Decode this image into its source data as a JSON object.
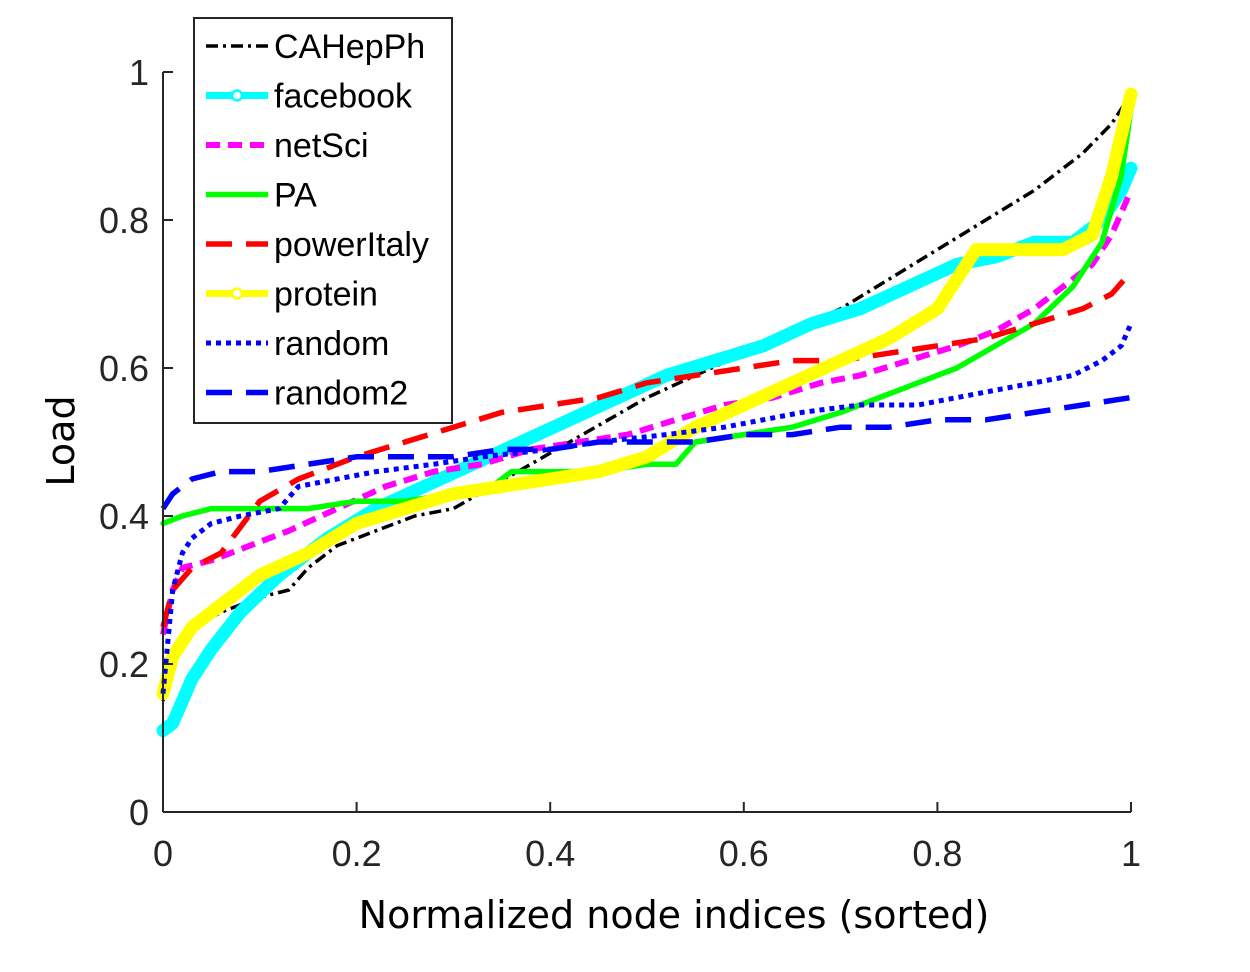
{
  "chart_data": {
    "type": "line",
    "xlabel": "Normalized node indices (sorted)",
    "ylabel": "Load",
    "xlim": [
      0,
      1
    ],
    "ylim": [
      0,
      1
    ],
    "xticks": [
      "0",
      "0.2",
      "0.4",
      "0.6",
      "0.8",
      "1"
    ],
    "yticks": [
      "0",
      "0.2",
      "0.4",
      "0.6",
      "0.8",
      "1"
    ],
    "grid": false,
    "legend_position": "top-left",
    "series": [
      {
        "name": "CAHepPh",
        "color": "#000000",
        "style": "dashdot",
        "points": [
          [
            0,
            0.15
          ],
          [
            0.01,
            0.22
          ],
          [
            0.03,
            0.25
          ],
          [
            0.06,
            0.27
          ],
          [
            0.1,
            0.29
          ],
          [
            0.13,
            0.3
          ],
          [
            0.15,
            0.33
          ],
          [
            0.18,
            0.36
          ],
          [
            0.22,
            0.38
          ],
          [
            0.26,
            0.4
          ],
          [
            0.3,
            0.41
          ],
          [
            0.34,
            0.44
          ],
          [
            0.38,
            0.47
          ],
          [
            0.42,
            0.5
          ],
          [
            0.46,
            0.53
          ],
          [
            0.5,
            0.56
          ],
          [
            0.55,
            0.59
          ],
          [
            0.6,
            0.62
          ],
          [
            0.65,
            0.65
          ],
          [
            0.7,
            0.68
          ],
          [
            0.75,
            0.72
          ],
          [
            0.8,
            0.76
          ],
          [
            0.85,
            0.8
          ],
          [
            0.9,
            0.84
          ],
          [
            0.95,
            0.89
          ],
          [
            0.98,
            0.93
          ],
          [
            1,
            0.97
          ]
        ]
      },
      {
        "name": "facebook",
        "color": "#00ffff",
        "style": "solid-marker",
        "points": [
          [
            0,
            0.11
          ],
          [
            0.01,
            0.12
          ],
          [
            0.02,
            0.15
          ],
          [
            0.03,
            0.18
          ],
          [
            0.05,
            0.22
          ],
          [
            0.08,
            0.27
          ],
          [
            0.12,
            0.32
          ],
          [
            0.17,
            0.37
          ],
          [
            0.22,
            0.41
          ],
          [
            0.27,
            0.44
          ],
          [
            0.32,
            0.47
          ],
          [
            0.37,
            0.5
          ],
          [
            0.42,
            0.53
          ],
          [
            0.47,
            0.56
          ],
          [
            0.52,
            0.59
          ],
          [
            0.57,
            0.61
          ],
          [
            0.62,
            0.63
          ],
          [
            0.67,
            0.66
          ],
          [
            0.72,
            0.68
          ],
          [
            0.77,
            0.71
          ],
          [
            0.82,
            0.74
          ],
          [
            0.86,
            0.75
          ],
          [
            0.9,
            0.77
          ],
          [
            0.94,
            0.77
          ],
          [
            0.97,
            0.8
          ],
          [
            0.99,
            0.84
          ],
          [
            1,
            0.87
          ]
        ]
      },
      {
        "name": "netSci",
        "color": "#ff00ff",
        "style": "dashed",
        "points": [
          [
            0,
            0.24
          ],
          [
            0.01,
            0.3
          ],
          [
            0.02,
            0.33
          ],
          [
            0.05,
            0.34
          ],
          [
            0.09,
            0.36
          ],
          [
            0.13,
            0.38
          ],
          [
            0.18,
            0.41
          ],
          [
            0.23,
            0.44
          ],
          [
            0.28,
            0.46
          ],
          [
            0.33,
            0.47
          ],
          [
            0.38,
            0.49
          ],
          [
            0.43,
            0.5
          ],
          [
            0.48,
            0.51
          ],
          [
            0.53,
            0.53
          ],
          [
            0.58,
            0.55
          ],
          [
            0.63,
            0.56
          ],
          [
            0.68,
            0.58
          ],
          [
            0.72,
            0.59
          ],
          [
            0.77,
            0.61
          ],
          [
            0.82,
            0.63
          ],
          [
            0.86,
            0.65
          ],
          [
            0.9,
            0.68
          ],
          [
            0.93,
            0.71
          ],
          [
            0.96,
            0.74
          ],
          [
            0.98,
            0.78
          ],
          [
            1,
            0.84
          ]
        ]
      },
      {
        "name": "PA",
        "color": "#00ff00",
        "style": "solid",
        "points": [
          [
            0,
            0.39
          ],
          [
            0.02,
            0.4
          ],
          [
            0.05,
            0.41
          ],
          [
            0.1,
            0.41
          ],
          [
            0.15,
            0.41
          ],
          [
            0.2,
            0.42
          ],
          [
            0.25,
            0.42
          ],
          [
            0.3,
            0.43
          ],
          [
            0.34,
            0.44
          ],
          [
            0.36,
            0.46
          ],
          [
            0.4,
            0.46
          ],
          [
            0.45,
            0.46
          ],
          [
            0.5,
            0.47
          ],
          [
            0.53,
            0.47
          ],
          [
            0.55,
            0.5
          ],
          [
            0.6,
            0.51
          ],
          [
            0.65,
            0.52
          ],
          [
            0.7,
            0.54
          ],
          [
            0.74,
            0.56
          ],
          [
            0.78,
            0.58
          ],
          [
            0.82,
            0.6
          ],
          [
            0.86,
            0.63
          ],
          [
            0.9,
            0.66
          ],
          [
            0.94,
            0.71
          ],
          [
            0.97,
            0.77
          ],
          [
            0.99,
            0.86
          ],
          [
            1,
            0.95
          ]
        ]
      },
      {
        "name": "powerItaly",
        "color": "#ff0000",
        "style": "longdash",
        "points": [
          [
            0,
            0.25
          ],
          [
            0.01,
            0.3
          ],
          [
            0.03,
            0.33
          ],
          [
            0.06,
            0.35
          ],
          [
            0.1,
            0.42
          ],
          [
            0.14,
            0.45
          ],
          [
            0.2,
            0.48
          ],
          [
            0.25,
            0.5
          ],
          [
            0.3,
            0.52
          ],
          [
            0.35,
            0.54
          ],
          [
            0.4,
            0.55
          ],
          [
            0.45,
            0.56
          ],
          [
            0.5,
            0.58
          ],
          [
            0.55,
            0.59
          ],
          [
            0.6,
            0.6
          ],
          [
            0.65,
            0.61
          ],
          [
            0.7,
            0.61
          ],
          [
            0.75,
            0.62
          ],
          [
            0.8,
            0.63
          ],
          [
            0.85,
            0.64
          ],
          [
            0.9,
            0.66
          ],
          [
            0.95,
            0.68
          ],
          [
            0.98,
            0.7
          ],
          [
            1,
            0.73
          ]
        ]
      },
      {
        "name": "protein",
        "color": "#ffff00",
        "style": "solid-marker",
        "points": [
          [
            0,
            0.16
          ],
          [
            0.01,
            0.21
          ],
          [
            0.03,
            0.25
          ],
          [
            0.06,
            0.28
          ],
          [
            0.1,
            0.32
          ],
          [
            0.15,
            0.35
          ],
          [
            0.2,
            0.39
          ],
          [
            0.25,
            0.41
          ],
          [
            0.3,
            0.43
          ],
          [
            0.35,
            0.44
          ],
          [
            0.4,
            0.45
          ],
          [
            0.45,
            0.46
          ],
          [
            0.5,
            0.48
          ],
          [
            0.55,
            0.52
          ],
          [
            0.6,
            0.55
          ],
          [
            0.65,
            0.58
          ],
          [
            0.7,
            0.61
          ],
          [
            0.75,
            0.64
          ],
          [
            0.8,
            0.68
          ],
          [
            0.84,
            0.76
          ],
          [
            0.87,
            0.76
          ],
          [
            0.9,
            0.76
          ],
          [
            0.93,
            0.76
          ],
          [
            0.96,
            0.78
          ],
          [
            0.98,
            0.86
          ],
          [
            1,
            0.97
          ]
        ]
      },
      {
        "name": "random",
        "color": "#0000ff",
        "style": "dotted",
        "points": [
          [
            0,
            0.16
          ],
          [
            0.01,
            0.3
          ],
          [
            0.02,
            0.35
          ],
          [
            0.03,
            0.37
          ],
          [
            0.05,
            0.39
          ],
          [
            0.08,
            0.4
          ],
          [
            0.12,
            0.41
          ],
          [
            0.14,
            0.44
          ],
          [
            0.18,
            0.45
          ],
          [
            0.22,
            0.46
          ],
          [
            0.28,
            0.47
          ],
          [
            0.33,
            0.48
          ],
          [
            0.4,
            0.49
          ],
          [
            0.45,
            0.5
          ],
          [
            0.52,
            0.51
          ],
          [
            0.58,
            0.52
          ],
          [
            0.62,
            0.53
          ],
          [
            0.66,
            0.54
          ],
          [
            0.72,
            0.55
          ],
          [
            0.78,
            0.55
          ],
          [
            0.82,
            0.56
          ],
          [
            0.86,
            0.57
          ],
          [
            0.9,
            0.58
          ],
          [
            0.94,
            0.59
          ],
          [
            0.97,
            0.61
          ],
          [
            0.99,
            0.63
          ],
          [
            1,
            0.66
          ]
        ]
      },
      {
        "name": "random2",
        "color": "#0000ff",
        "style": "longdash",
        "points": [
          [
            0,
            0.41
          ],
          [
            0.01,
            0.43
          ],
          [
            0.03,
            0.45
          ],
          [
            0.06,
            0.46
          ],
          [
            0.1,
            0.46
          ],
          [
            0.15,
            0.47
          ],
          [
            0.2,
            0.48
          ],
          [
            0.25,
            0.48
          ],
          [
            0.3,
            0.48
          ],
          [
            0.35,
            0.49
          ],
          [
            0.4,
            0.49
          ],
          [
            0.45,
            0.5
          ],
          [
            0.5,
            0.5
          ],
          [
            0.55,
            0.5
          ],
          [
            0.6,
            0.51
          ],
          [
            0.65,
            0.51
          ],
          [
            0.7,
            0.52
          ],
          [
            0.75,
            0.52
          ],
          [
            0.8,
            0.53
          ],
          [
            0.85,
            0.53
          ],
          [
            0.9,
            0.54
          ],
          [
            0.95,
            0.55
          ],
          [
            1,
            0.56
          ]
        ]
      }
    ]
  }
}
